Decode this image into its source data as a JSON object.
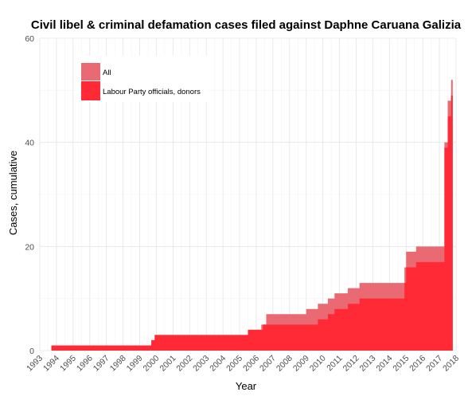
{
  "chart_data": {
    "type": "area",
    "title": "Civil libel & criminal defamation cases filed against Daphne Caruana Galizia",
    "xlabel": "Year",
    "ylabel": "Cases, cumulative",
    "xlim": [
      1993,
      2018
    ],
    "ylim": [
      0,
      60
    ],
    "x_ticks": [
      1993,
      1994,
      1995,
      1996,
      1997,
      1998,
      1999,
      2000,
      2001,
      2002,
      2003,
      2004,
      2005,
      2006,
      2007,
      2008,
      2009,
      2010,
      2011,
      2012,
      2013,
      2014,
      2015,
      2016,
      2017,
      2018
    ],
    "y_ticks": [
      0,
      20,
      40,
      60
    ],
    "grid": true,
    "legend_position": "top-left",
    "series": [
      {
        "name": "All",
        "color": "#e96a72",
        "x": [
          1993.7,
          1999.7,
          1999.9,
          2005.5,
          2006.3,
          2006.6,
          2009.0,
          2009.7,
          2010.3,
          2010.7,
          2011.5,
          2012.2,
          2014.9,
          2015.0,
          2015.6,
          2017.3,
          2017.5,
          2017.7,
          2017.8
        ],
        "values": [
          1,
          2,
          3,
          4,
          5,
          7,
          8,
          9,
          10,
          11,
          12,
          13,
          16,
          19,
          20,
          40,
          48,
          52,
          57
        ]
      },
      {
        "name": "Labour Party officials, donors",
        "color": "#ff2a35",
        "x": [
          1993.7,
          1999.7,
          1999.9,
          2005.5,
          2006.4,
          2009.7,
          2010.3,
          2010.7,
          2011.5,
          2012.2,
          2014.9,
          2015.0,
          2015.6,
          2017.3,
          2017.5,
          2017.7,
          2017.8
        ],
        "values": [
          1,
          2,
          3,
          4,
          5,
          6,
          7,
          8,
          9,
          10,
          13,
          16,
          17,
          39,
          45,
          49,
          49
        ]
      }
    ]
  }
}
